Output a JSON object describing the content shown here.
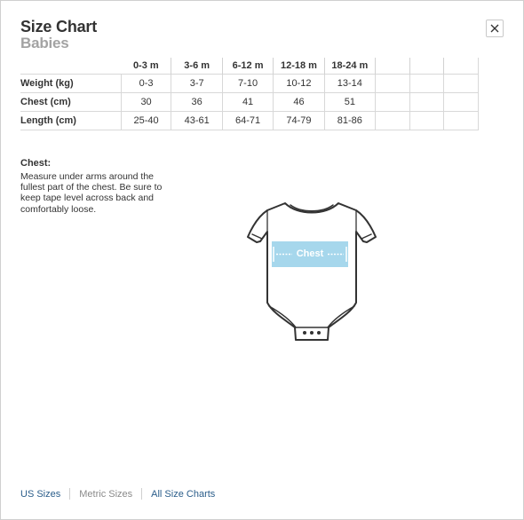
{
  "modal": {
    "title": "Size Chart",
    "subtitle": "Babies"
  },
  "table": {
    "columns": [
      "0-3 m",
      "3-6 m",
      "6-12 m",
      "12-18 m",
      "18-24 m"
    ],
    "rows": [
      {
        "label": "Weight (kg)",
        "values": [
          "0-3",
          "3-7",
          "7-10",
          "10-12",
          "13-14"
        ]
      },
      {
        "label": "Chest (cm)",
        "values": [
          "30",
          "36",
          "41",
          "46",
          "51"
        ]
      },
      {
        "label": "Length (cm)",
        "values": [
          "25-40",
          "43-61",
          "64-71",
          "74-79",
          "81-86"
        ]
      }
    ]
  },
  "measure": {
    "heading": "Chest:",
    "description": "Measure under arms around the fullest part of the chest. Be sure to keep tape level across back and comfortably loose.",
    "band_label": "Chest"
  },
  "footer": {
    "links": [
      {
        "label": "US Sizes",
        "color": "#2a5d8a"
      },
      {
        "label": "Metric Sizes",
        "color": "#8a8a8a"
      },
      {
        "label": "All Size Charts",
        "color": "#2a5d8a"
      }
    ]
  },
  "colors": {
    "chest_band": "#a6d7ec",
    "title": "#333333",
    "subtitle": "#a3a3a3"
  },
  "icons": {
    "close": "close-icon",
    "garment": "onesie-icon"
  }
}
